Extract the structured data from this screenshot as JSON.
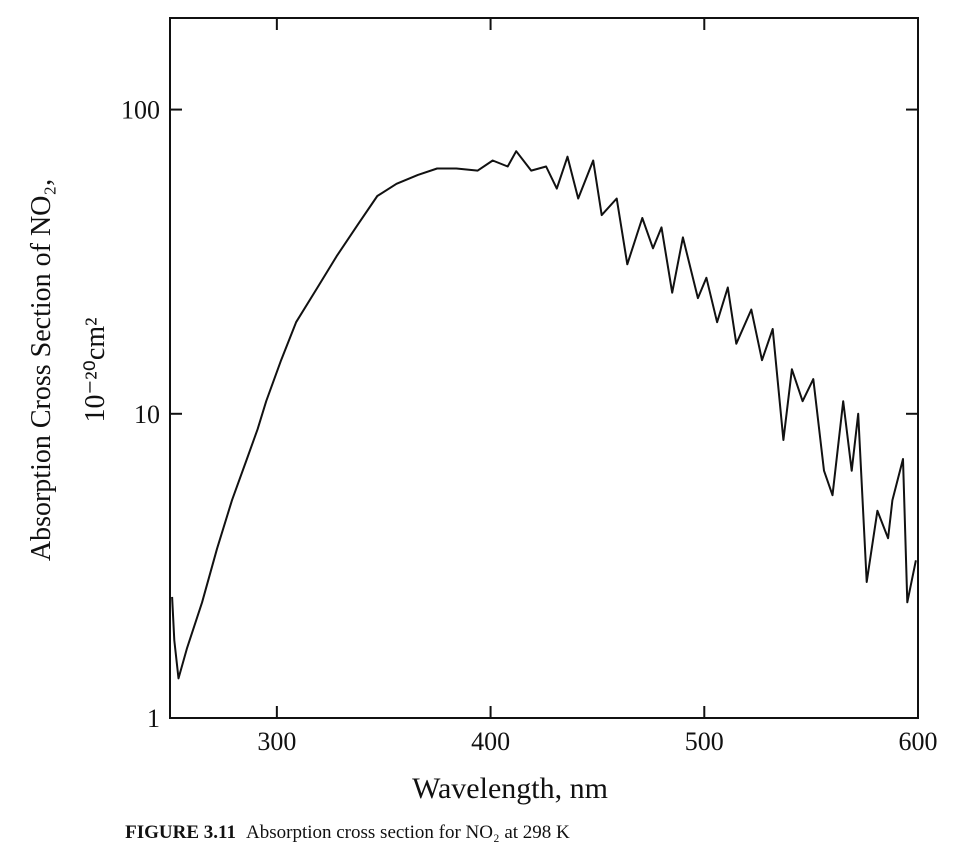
{
  "chart_data": {
    "type": "line",
    "title": "Absorption cross section for NO₂ at 298 K",
    "figure_label": "FIGURE 3.11",
    "x_label": "Wavelength,  nm",
    "y_label": [
      "Absorption Cross Section of NO₂,",
      "10⁻²⁰cm²"
    ],
    "x": [
      251,
      252,
      254,
      258,
      265,
      272,
      279,
      286,
      291,
      295,
      302,
      309,
      319,
      328,
      338,
      347,
      356,
      366,
      375,
      384,
      394,
      401,
      408,
      412,
      419,
      426,
      431,
      436,
      441,
      448,
      452,
      459,
      464,
      471,
      476,
      480,
      485,
      490,
      497,
      501,
      506,
      511,
      515,
      522,
      527,
      532,
      537,
      541,
      546,
      551,
      556,
      560,
      565,
      569,
      572,
      576,
      581,
      586,
      588,
      593,
      595,
      599
    ],
    "series": [
      {
        "name": "NO2",
        "color": "#111111",
        "values": [
          2.5,
          1.8,
          1.35,
          1.7,
          2.4,
          3.6,
          5.2,
          7.1,
          8.9,
          11,
          15,
          20,
          26,
          33,
          42,
          52,
          57,
          61,
          64,
          64,
          63,
          68,
          65,
          73,
          63,
          65,
          55,
          70,
          51,
          68,
          45,
          51,
          31,
          44,
          35,
          41,
          25,
          38,
          24,
          28,
          20,
          26,
          17,
          22,
          15,
          19,
          8.2,
          14,
          11,
          13,
          6.5,
          5.4,
          11,
          6.5,
          10,
          2.8,
          4.8,
          3.9,
          5.2,
          7.1,
          2.4,
          3.3
        ]
      }
    ],
    "xlim": [
      250,
      600
    ],
    "ylim": [
      1,
      200
    ],
    "xticks": [
      300,
      400,
      500,
      600
    ],
    "yticks": [
      1,
      10,
      100
    ],
    "ylog": true,
    "grid": false
  }
}
